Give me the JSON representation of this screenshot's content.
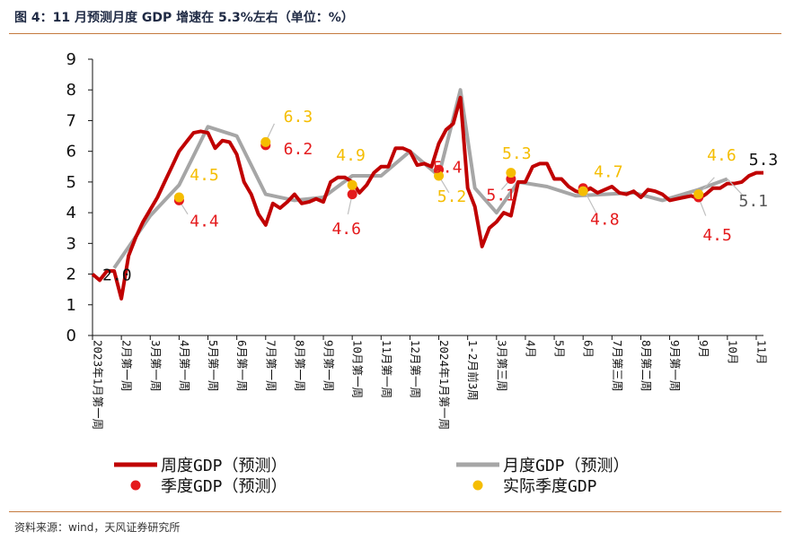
{
  "header": {
    "title": "图 4：11 月预测月度 GDP 增速在 5.3%左右（单位：%）"
  },
  "footer": {
    "source": "资料来源：wind，天风证券研究所"
  },
  "colors": {
    "weekly": "#c00000",
    "monthly": "#a6a6a6",
    "quarterly_pred": "#e41a1c",
    "quarterly_actual": "#f5bd00",
    "rule": "#c47a3e"
  },
  "chart_data": {
    "type": "line",
    "ylim": [
      0,
      9
    ],
    "yticks": [
      0,
      1,
      2,
      3,
      4,
      5,
      6,
      7,
      8,
      9
    ],
    "grid": false,
    "legend_position": "bottom",
    "x_ticks": [
      {
        "label": "2023年1月第一周",
        "x": 0
      },
      {
        "label": "2月第一周",
        "x": 4
      },
      {
        "label": "3月第一周",
        "x": 8
      },
      {
        "label": "4月第一周",
        "x": 12
      },
      {
        "label": "5月第一周",
        "x": 16
      },
      {
        "label": "6月第一周",
        "x": 20
      },
      {
        "label": "7月第一周",
        "x": 24
      },
      {
        "label": "8月第一周",
        "x": 28
      },
      {
        "label": "9月第一周",
        "x": 32
      },
      {
        "label": "10月第一周",
        "x": 36
      },
      {
        "label": "11月第一周",
        "x": 40
      },
      {
        "label": "12月第一周",
        "x": 44
      },
      {
        "label": "2024年1月第一周",
        "x": 48
      },
      {
        "label": "1-2月前3周",
        "x": 52
      },
      {
        "label": "3月第三周",
        "x": 56
      },
      {
        "label": "4月",
        "x": 60
      },
      {
        "label": "5月",
        "x": 64
      },
      {
        "label": "6月",
        "x": 68
      },
      {
        "label": "7月第三周",
        "x": 72
      },
      {
        "label": "8月第二周",
        "x": 76
      },
      {
        "label": "9月第一周",
        "x": 80
      },
      {
        "label": "9月",
        "x": 84
      },
      {
        "label": "10月",
        "x": 88
      },
      {
        "label": "11月",
        "x": 92
      }
    ],
    "series": [
      {
        "name": "周度GDP（预测）",
        "points": [
          [
            0,
            2.0
          ],
          [
            1,
            1.8
          ],
          [
            2,
            2.1
          ],
          [
            3,
            2.1
          ],
          [
            4,
            1.2
          ],
          [
            5,
            2.6
          ],
          [
            6,
            3.2
          ],
          [
            7,
            3.7
          ],
          [
            8,
            4.1
          ],
          [
            9,
            4.5
          ],
          [
            10,
            5.0
          ],
          [
            11,
            5.5
          ],
          [
            12,
            6.0
          ],
          [
            13,
            6.3
          ],
          [
            14,
            6.6
          ],
          [
            15,
            6.65
          ],
          [
            16,
            6.6
          ],
          [
            17,
            6.1
          ],
          [
            18,
            6.35
          ],
          [
            19,
            6.3
          ],
          [
            20,
            5.9
          ],
          [
            21,
            5.0
          ],
          [
            22,
            4.6
          ],
          [
            23,
            3.95
          ],
          [
            24,
            3.6
          ],
          [
            25,
            4.3
          ],
          [
            26,
            4.15
          ],
          [
            27,
            4.35
          ],
          [
            28,
            4.6
          ],
          [
            29,
            4.3
          ],
          [
            30,
            4.35
          ],
          [
            31,
            4.45
          ],
          [
            32,
            4.35
          ],
          [
            33,
            5.0
          ],
          [
            34,
            5.15
          ],
          [
            35,
            5.15
          ],
          [
            36,
            5.0
          ],
          [
            37,
            4.65
          ],
          [
            38,
            4.9
          ],
          [
            39,
            5.3
          ],
          [
            40,
            5.5
          ],
          [
            41,
            5.5
          ],
          [
            42,
            6.1
          ],
          [
            43,
            6.1
          ],
          [
            44,
            6.0
          ],
          [
            45,
            5.55
          ],
          [
            46,
            5.6
          ],
          [
            47,
            5.5
          ],
          [
            48,
            6.25
          ],
          [
            49,
            6.7
          ],
          [
            50,
            6.9
          ],
          [
            51,
            7.75
          ],
          [
            52,
            4.8
          ],
          [
            53,
            4.2
          ],
          [
            54,
            2.9
          ],
          [
            55,
            3.5
          ],
          [
            56,
            3.7
          ],
          [
            57,
            4.0
          ],
          [
            58,
            3.9
          ],
          [
            59,
            5.0
          ],
          [
            60,
            5.0
          ],
          [
            61,
            5.5
          ],
          [
            62,
            5.6
          ],
          [
            63,
            5.6
          ],
          [
            64,
            5.1
          ],
          [
            65,
            5.1
          ],
          [
            66,
            4.85
          ],
          [
            67,
            4.7
          ],
          [
            68,
            4.65
          ],
          [
            69,
            4.8
          ],
          [
            70,
            4.65
          ],
          [
            71,
            4.75
          ],
          [
            72,
            4.85
          ],
          [
            73,
            4.65
          ],
          [
            74,
            4.6
          ],
          [
            75,
            4.7
          ],
          [
            76,
            4.5
          ],
          [
            77,
            4.75
          ],
          [
            78,
            4.7
          ],
          [
            79,
            4.6
          ],
          [
            80,
            4.4
          ],
          [
            81,
            4.45
          ],
          [
            82,
            4.5
          ],
          [
            83,
            4.55
          ],
          [
            84,
            4.45
          ],
          [
            85,
            4.6
          ],
          [
            86,
            4.8
          ],
          [
            87,
            4.8
          ],
          [
            88,
            4.95
          ],
          [
            89,
            4.95
          ],
          [
            90,
            5.0
          ],
          [
            91,
            5.2
          ],
          [
            92,
            5.3
          ],
          [
            93,
            5.3
          ]
        ]
      },
      {
        "name": "月度GDP（预测）",
        "points": [
          [
            3,
            2.2
          ],
          [
            8,
            3.9
          ],
          [
            12,
            4.9
          ],
          [
            16,
            6.8
          ],
          [
            20,
            6.5
          ],
          [
            24,
            4.6
          ],
          [
            28,
            4.4
          ],
          [
            32,
            4.5
          ],
          [
            36,
            5.2
          ],
          [
            40,
            5.2
          ],
          [
            44,
            6.0
          ],
          [
            48,
            5.2
          ],
          [
            51,
            8.0
          ],
          [
            53,
            4.8
          ],
          [
            56,
            4.0
          ],
          [
            59,
            5.0
          ],
          [
            63,
            4.85
          ],
          [
            67,
            4.55
          ],
          [
            71,
            4.6
          ],
          [
            75,
            4.65
          ],
          [
            79,
            4.4
          ],
          [
            84,
            4.75
          ],
          [
            88,
            5.1
          ]
        ]
      },
      {
        "name": "季度GDP（预测）",
        "points": [
          [
            12,
            4.4
          ],
          [
            24,
            6.2
          ],
          [
            36,
            4.6
          ],
          [
            48,
            5.4
          ],
          [
            58,
            5.1
          ],
          [
            68,
            4.8
          ],
          [
            84,
            4.5
          ]
        ]
      },
      {
        "name": "实际季度GDP",
        "points": [
          [
            12,
            4.5
          ],
          [
            24,
            6.3
          ],
          [
            36,
            4.9
          ],
          [
            48,
            5.2
          ],
          [
            58,
            5.3
          ],
          [
            68,
            4.7
          ],
          [
            84,
            4.6
          ]
        ]
      }
    ],
    "annotations": [
      {
        "text": "2.0",
        "x": 3.4,
        "y": 1.95,
        "color": "#111111"
      },
      {
        "text": "4.5",
        "x": 15.5,
        "y": 5.2,
        "color": "#f5bd00"
      },
      {
        "text": "4.4",
        "x": 15.5,
        "y": 3.7,
        "color": "#e41a1c"
      },
      {
        "text": "6.3",
        "x": 28.5,
        "y": 7.1,
        "color": "#f5bd00"
      },
      {
        "text": "6.2",
        "x": 28.5,
        "y": 6.05,
        "color": "#e41a1c"
      },
      {
        "text": "4.9",
        "x": 35.8,
        "y": 5.85,
        "color": "#f5bd00"
      },
      {
        "text": "4.6",
        "x": 35.2,
        "y": 3.45,
        "color": "#e41a1c"
      },
      {
        "text": "5.4",
        "x": 49.2,
        "y": 5.45,
        "color": "#e41a1c"
      },
      {
        "text": "5.2",
        "x": 49.8,
        "y": 4.5,
        "color": "#f5bd00"
      },
      {
        "text": "5.3",
        "x": 58.8,
        "y": 5.9,
        "color": "#f5bd00"
      },
      {
        "text": "5.1",
        "x": 56.6,
        "y": 4.55,
        "color": "#e41a1c"
      },
      {
        "text": "4.7",
        "x": 71.5,
        "y": 5.3,
        "color": "#f5bd00"
      },
      {
        "text": "4.8",
        "x": 71.0,
        "y": 3.75,
        "color": "#e41a1c"
      },
      {
        "text": "4.6",
        "x": 87.2,
        "y": 5.85,
        "color": "#f5bd00"
      },
      {
        "text": "4.5",
        "x": 86.6,
        "y": 3.25,
        "color": "#e41a1c"
      },
      {
        "text": "5.1",
        "x": 91.6,
        "y": 4.35,
        "color": "#595959"
      },
      {
        "text": "5.3",
        "x": 93.0,
        "y": 5.7,
        "color": "#111111"
      }
    ],
    "leaders": [
      {
        "from": [
          12,
          4.4
        ],
        "to": [
          13.2,
          3.95
        ]
      },
      {
        "from": [
          24,
          6.3
        ],
        "to": [
          25.2,
          6.9
        ]
      },
      {
        "from": [
          36,
          4.6
        ],
        "to": [
          35.4,
          3.95
        ]
      },
      {
        "from": [
          48,
          5.2
        ],
        "to": [
          49.4,
          4.65
        ]
      },
      {
        "from": [
          58,
          5.1
        ],
        "to": [
          56.7,
          4.75
        ]
      },
      {
        "from": [
          68,
          4.8
        ],
        "to": [
          69.8,
          4.0
        ]
      },
      {
        "from": [
          84,
          4.5
        ],
        "to": [
          85.0,
          3.9
        ]
      },
      {
        "from": [
          84,
          4.6
        ],
        "to": [
          86.2,
          5.15
        ]
      },
      {
        "from": [
          88,
          5.1
        ],
        "to": [
          90.2,
          4.55
        ]
      }
    ],
    "legend": [
      {
        "label": "周度GDP（预测）",
        "kind": "line",
        "color": "#c00000"
      },
      {
        "label": "季度GDP（预测）",
        "kind": "dot",
        "color": "#e41a1c"
      },
      {
        "label": "月度GDP（预测）",
        "kind": "line",
        "color": "#a6a6a6"
      },
      {
        "label": "实际季度GDP",
        "kind": "dot",
        "color": "#f5bd00"
      }
    ]
  }
}
